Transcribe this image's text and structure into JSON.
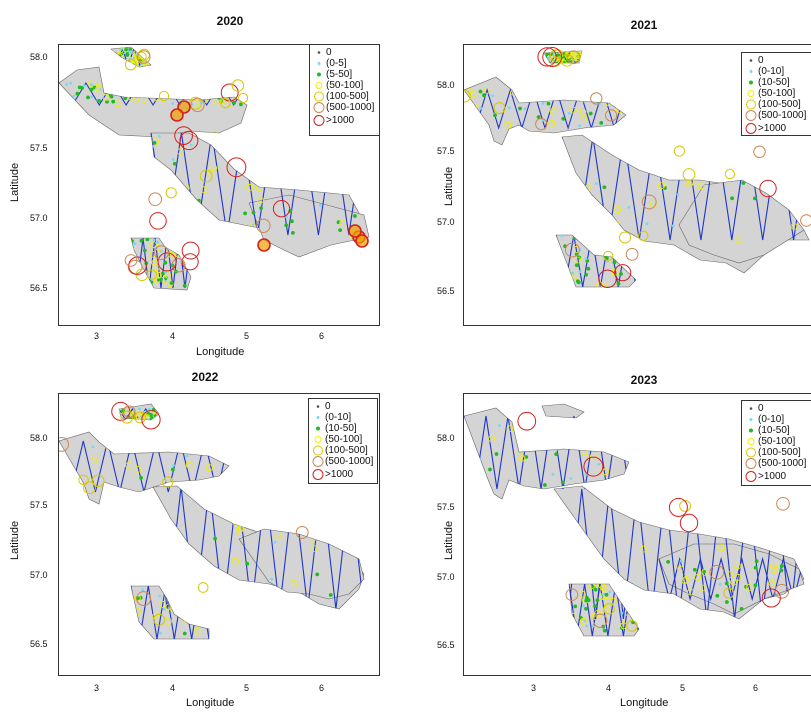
{
  "xlabel": "Longitude",
  "ylabel": "Latitude",
  "x_ticks": [
    "3",
    "4",
    "5",
    "6"
  ],
  "y_ticks": [
    "56.5",
    "57.0",
    "57.5",
    "58.0"
  ],
  "colors": {
    "track": "#1f36c9",
    "survey_area": "#d4d4d4",
    "cls_0": "#4d4d4d",
    "cls_1": "#7ad6f0",
    "cls_2": "#22b922",
    "cls_3": "#f0f000",
    "cls_4": "#d6c900",
    "cls_5": "#cc8855",
    "cls_6": "#d42020"
  },
  "panels": [
    {
      "title": "2020",
      "legend": [
        "0",
        "(0-5]",
        "(5-50]",
        "(50-100]",
        "(100-500]",
        "(500-1000]",
        ">1000"
      ],
      "density": "high"
    },
    {
      "title": "2021",
      "legend": [
        "0",
        "(0-10]",
        "(10-50]",
        "(50-100]",
        "(100-500]",
        "(500-1000]",
        ">1000"
      ],
      "density": "medium"
    },
    {
      "title": "2022",
      "legend": [
        "0",
        "(0-10]",
        "(10-50]",
        "(50-100]",
        "(100-500]",
        "(500-1000]",
        ">1000"
      ],
      "density": "low"
    },
    {
      "title": "2023",
      "legend": [
        "0",
        "(0-10]",
        "(10-50]",
        "(50-100]",
        "(100-500]",
        "(500-1000]",
        ">1000"
      ],
      "density": "low"
    }
  ]
}
